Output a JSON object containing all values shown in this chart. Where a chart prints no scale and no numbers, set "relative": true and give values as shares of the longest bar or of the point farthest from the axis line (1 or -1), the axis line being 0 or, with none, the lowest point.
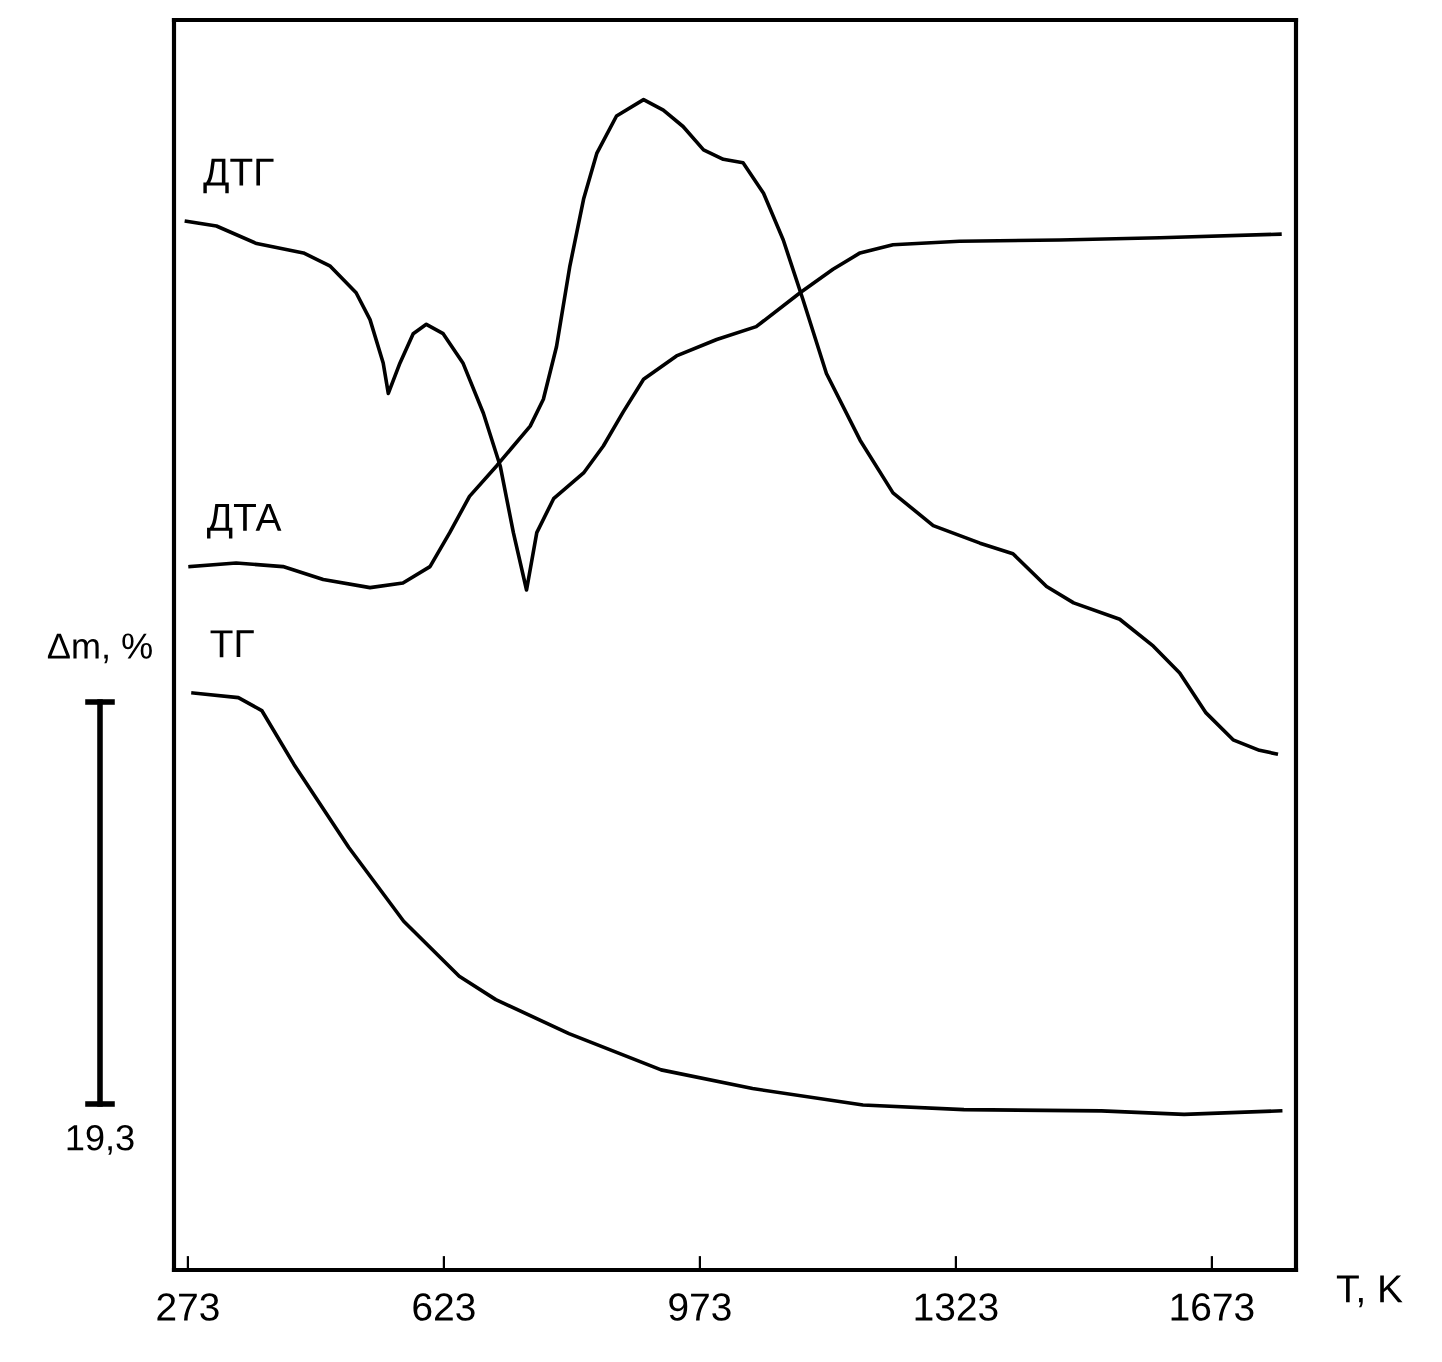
{
  "chart_data": {
    "type": "line",
    "relative": true,
    "xlabel": "T, K",
    "xlim": [
      254,
      1788
    ],
    "xticks": [
      273,
      623,
      973,
      1323,
      1673
    ],
    "tick_labels": "x",
    "grid": false,
    "legend": false,
    "marker": "none",
    "line_style": "solid",
    "annotations": [
      "Δm, %",
      "19,3"
    ],
    "series": [
      {
        "name": "ДТГ",
        "color": "#000000",
        "x": [
          271,
          312,
          367,
          431,
          467,
          503,
          522,
          540,
          547,
          563,
          581,
          599,
          622,
          649,
          677,
          700,
          718,
          736,
          750,
          773,
          814,
          841,
          868,
          896,
          941,
          996,
          1050,
          1110,
          1155,
          1192,
          1237,
          1328,
          1465,
          1602,
          1766
        ],
        "values": [
          0.896,
          0.892,
          0.877,
          0.869,
          0.858,
          0.835,
          0.812,
          0.775,
          0.749,
          0.775,
          0.8,
          0.808,
          0.8,
          0.775,
          0.732,
          0.687,
          0.63,
          0.581,
          0.63,
          0.659,
          0.681,
          0.704,
          0.733,
          0.761,
          0.781,
          0.795,
          0.806,
          0.835,
          0.855,
          0.869,
          0.876,
          0.879,
          0.88,
          0.882,
          0.885
        ]
      },
      {
        "name": "ДТА",
        "color": "#000000",
        "x": [
          276,
          339,
          403,
          458,
          522,
          567,
          604,
          631,
          658,
          695,
          741,
          759,
          777,
          795,
          814,
          832,
          859,
          896,
          923,
          950,
          978,
          1005,
          1032,
          1060,
          1087,
          1114,
          1146,
          1192,
          1237,
          1292,
          1356,
          1401,
          1447,
          1484,
          1547,
          1593,
          1629,
          1665,
          1702,
          1738,
          1761
        ],
        "values": [
          0.601,
          0.604,
          0.601,
          0.59,
          0.583,
          0.587,
          0.601,
          0.63,
          0.661,
          0.687,
          0.721,
          0.744,
          0.789,
          0.857,
          0.915,
          0.954,
          0.986,
          1.0,
          0.991,
          0.977,
          0.957,
          0.949,
          0.946,
          0.92,
          0.88,
          0.829,
          0.766,
          0.709,
          0.664,
          0.636,
          0.621,
          0.612,
          0.584,
          0.57,
          0.556,
          0.533,
          0.51,
          0.476,
          0.453,
          0.444,
          0.441
        ]
      },
      {
        "name": "ТГ",
        "color": "#000000",
        "x": [
          280,
          342,
          374,
          418,
          493,
          568,
          644,
          694,
          794,
          920,
          1045,
          1196,
          1334,
          1522,
          1635,
          1767
        ],
        "values": [
          0.493,
          0.489,
          0.478,
          0.432,
          0.361,
          0.298,
          0.251,
          0.231,
          0.202,
          0.171,
          0.155,
          0.141,
          0.137,
          0.136,
          0.133,
          0.136
        ]
      }
    ]
  }
}
